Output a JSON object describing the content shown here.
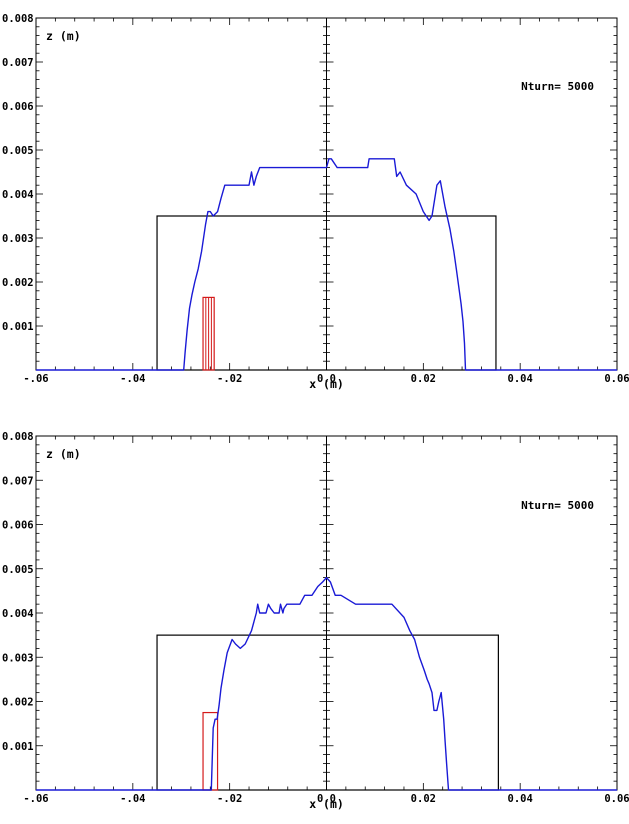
{
  "chart_data": [
    {
      "type": "line",
      "xlabel": "x (m)",
      "ylabel": "z (m)",
      "annotation": "Nturn=  5000",
      "xlim": [
        -0.06,
        0.06
      ],
      "ylim": [
        0,
        0.008
      ],
      "xticks": [
        "-.06",
        "-.04",
        "-.02",
        "0.0",
        "0.02",
        "0.04",
        "0.06"
      ],
      "yticks": [
        "0.001",
        "0.002",
        "0.003",
        "0.004",
        "0.005",
        "0.006",
        "0.007",
        "0.008"
      ],
      "colors": {
        "envelope": "#1a1ad6",
        "aperture": "#000000",
        "collimator": "#d41a1a"
      },
      "aperture": {
        "x": [
          -0.035,
          0.035
        ],
        "z": [
          0,
          0.0035
        ]
      },
      "collimator": {
        "x": [
          -0.0255,
          -0.0232
        ],
        "z": [
          0,
          0.00165
        ],
        "strips": 4
      },
      "series": [
        {
          "x": [
            -0.06,
            -0.0295,
            -0.0292,
            -0.0288,
            -0.0283,
            -0.0278,
            -0.0272,
            -0.0265,
            -0.0258,
            -0.025,
            -0.0245,
            -0.024,
            -0.0234,
            -0.0225,
            -0.0218,
            -0.021,
            -0.02,
            -0.019,
            -0.0175,
            -0.016,
            -0.0155,
            -0.015,
            -0.0145,
            -0.0138,
            -0.0132,
            -0.012,
            -0.009,
            -0.004,
            0.0,
            0.0005,
            0.001,
            0.0022,
            0.0045,
            0.0085,
            0.0088,
            0.0092,
            0.014,
            0.0145,
            0.0152,
            0.0165,
            0.0185,
            0.02,
            0.0212,
            0.0218,
            0.0228,
            0.0235,
            0.0245,
            0.0255,
            0.0263,
            0.0268,
            0.0273,
            0.0278,
            0.0282,
            0.0285,
            0.0287,
            0.06
          ],
          "y": [
            0,
            0,
            0.0004,
            0.0009,
            0.0014,
            0.0017,
            0.002,
            0.0023,
            0.0027,
            0.0033,
            0.0036,
            0.0036,
            0.0035,
            0.0036,
            0.0039,
            0.0042,
            0.0042,
            0.0042,
            0.0042,
            0.0042,
            0.0045,
            0.0042,
            0.0044,
            0.0046,
            0.0046,
            0.0046,
            0.0046,
            0.0046,
            0.0046,
            0.0048,
            0.0048,
            0.0046,
            0.0046,
            0.0046,
            0.0048,
            0.0048,
            0.0048,
            0.0044,
            0.0045,
            0.0042,
            0.004,
            0.0036,
            0.0034,
            0.0035,
            0.0042,
            0.0043,
            0.0037,
            0.0032,
            0.0027,
            0.0023,
            0.0019,
            0.0015,
            0.0011,
            0.0006,
            0,
            0
          ]
        }
      ]
    },
    {
      "type": "line",
      "xlabel": "x (m)",
      "ylabel": "z (m)",
      "annotation": "Nturn=  5000",
      "xlim": [
        -0.06,
        0.06
      ],
      "ylim": [
        0,
        0.008
      ],
      "xticks": [
        "-.06",
        "-.04",
        "-.02",
        "0.0",
        "0.02",
        "0.04",
        "0.06"
      ],
      "yticks": [
        "0.001",
        "0.002",
        "0.003",
        "0.004",
        "0.005",
        "0.006",
        "0.007",
        "0.008"
      ],
      "colors": {
        "envelope": "#1a1ad6",
        "aperture": "#000000",
        "collimator": "#d41a1a"
      },
      "aperture": {
        "x": [
          -0.035,
          0.0355
        ],
        "z": [
          0,
          0.0035
        ]
      },
      "collimator": {
        "x": [
          -0.0255,
          -0.0225
        ],
        "z": [
          0,
          0.00175
        ],
        "strips": 1
      },
      "series": [
        {
          "x": [
            -0.06,
            -0.0238,
            -0.0234,
            -0.023,
            -0.0226,
            -0.0222,
            -0.0218,
            -0.0212,
            -0.0205,
            -0.0195,
            -0.0188,
            -0.0178,
            -0.0168,
            -0.0155,
            -0.0145,
            -0.0142,
            -0.0138,
            -0.0125,
            -0.012,
            -0.0115,
            -0.0108,
            -0.0098,
            -0.0095,
            -0.009,
            -0.0088,
            -0.0082,
            -0.0075,
            -0.0055,
            -0.0045,
            -0.003,
            -0.0018,
            -0.0008,
            0.0,
            0.0008,
            0.0018,
            0.003,
            0.006,
            0.0095,
            0.0135,
            0.016,
            0.0172,
            0.0182,
            0.0192,
            0.0202,
            0.0208,
            0.0212,
            0.0218,
            0.0222,
            0.0228,
            0.0232,
            0.0237,
            0.0242,
            0.0245,
            0.0248,
            0.0252,
            0.06
          ],
          "y": [
            0,
            0,
            0.0014,
            0.0016,
            0.0016,
            0.0019,
            0.0023,
            0.0027,
            0.0031,
            0.0034,
            0.0033,
            0.0032,
            0.0033,
            0.0036,
            0.004,
            0.0042,
            0.004,
            0.004,
            0.0042,
            0.0041,
            0.004,
            0.004,
            0.0042,
            0.004,
            0.0041,
            0.0042,
            0.0042,
            0.0042,
            0.0044,
            0.0044,
            0.0046,
            0.0047,
            0.0048,
            0.0047,
            0.0044,
            0.0044,
            0.0042,
            0.0042,
            0.0042,
            0.0039,
            0.0036,
            0.0034,
            0.003,
            0.0027,
            0.0025,
            0.0024,
            0.0022,
            0.0018,
            0.0018,
            0.002,
            0.0022,
            0.0016,
            0.0011,
            0.0006,
            0,
            0
          ]
        }
      ]
    }
  ]
}
